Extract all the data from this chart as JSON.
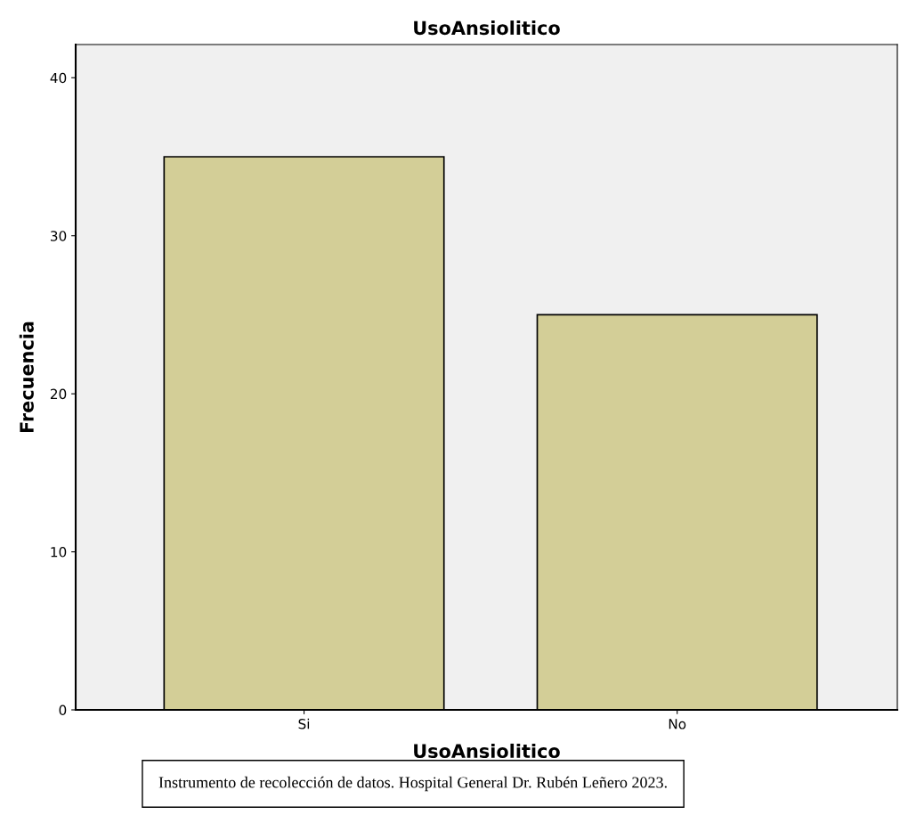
{
  "chart_data": {
    "type": "bar",
    "title": "UsoAnsiolitico",
    "xlabel": "UsoAnsiolitico",
    "ylabel": "Frecuencia",
    "categories": [
      "Si",
      "No"
    ],
    "values": [
      35,
      25
    ],
    "color": "#d3ce97",
    "ylim": [
      0,
      42.1
    ],
    "yticks": [
      0,
      10,
      20,
      30,
      40
    ],
    "grid": false,
    "annotations": [
      "Instrumento de recolección de datos. Hospital General Dr. Rubén Leñero 2023."
    ]
  }
}
